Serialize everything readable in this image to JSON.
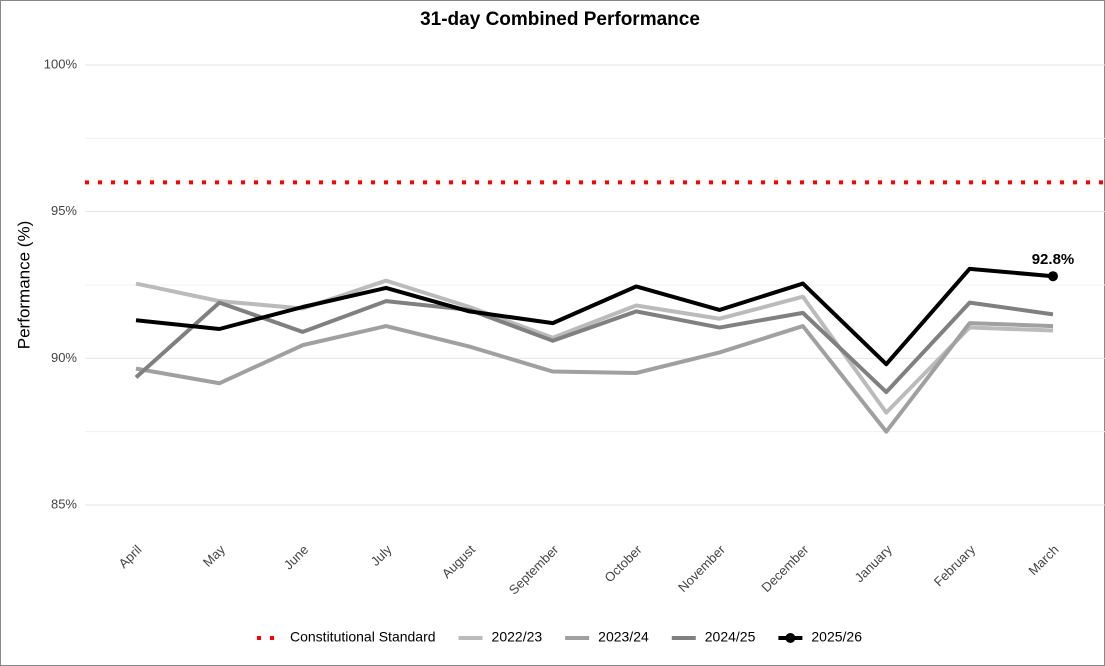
{
  "chart_data": {
    "type": "line",
    "title": "31-day Combined Performance",
    "y_label": "Performance (%)",
    "categories": [
      "April",
      "May",
      "June",
      "July",
      "August",
      "September",
      "October",
      "November",
      "December",
      "January",
      "February",
      "March"
    ],
    "reference_line": {
      "name": "Constitutional Standard",
      "value": 96,
      "color": "#ff0000",
      "style": "dotted"
    },
    "series": [
      {
        "name": "2022/23",
        "color": "#bbbbbb",
        "values": [
          92.55,
          91.95,
          91.7,
          92.65,
          91.75,
          90.7,
          91.8,
          91.35,
          92.1,
          88.15,
          91.05,
          90.95
        ]
      },
      {
        "name": "2023/24",
        "color": "#a0a0a0",
        "values": [
          89.65,
          89.15,
          90.45,
          91.1,
          90.4,
          89.55,
          89.5,
          90.2,
          91.1,
          87.5,
          91.2,
          91.1
        ]
      },
      {
        "name": "2024/25",
        "color": "#808080",
        "values": [
          89.35,
          91.9,
          90.9,
          91.95,
          91.65,
          90.6,
          91.6,
          91.05,
          91.55,
          88.85,
          91.9,
          91.5
        ]
      },
      {
        "name": "2025/26",
        "color": "#000000",
        "values": [
          91.3,
          91.0,
          91.75,
          92.4,
          91.6,
          91.2,
          92.45,
          91.65,
          92.55,
          89.8,
          93.05,
          92.8
        ],
        "value_labels": [
          null,
          null,
          null,
          null,
          null,
          null,
          null,
          null,
          null,
          null,
          null,
          "92.8%"
        ]
      }
    ],
    "ylim": [
      84,
      100.5
    ],
    "yticks": [
      {
        "value": 85,
        "label": "85%"
      },
      {
        "value": 90,
        "label": "90%"
      },
      {
        "value": 95,
        "label": "95%"
      },
      {
        "value": 100,
        "label": "100%"
      }
    ],
    "minor_yticks": [
      87.5,
      92.5,
      97.5
    ],
    "grid": true,
    "legend": "bottom"
  }
}
